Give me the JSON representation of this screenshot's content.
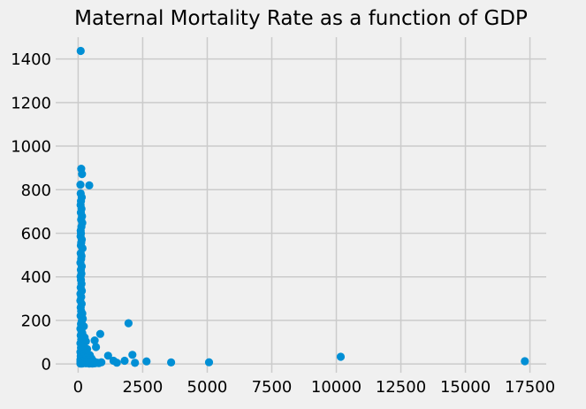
{
  "colors": {
    "figure_background": "#f0f0f0",
    "axes_background": "#f0f0f0",
    "grid": "#cbcbcb",
    "point": "#008fd5",
    "text": "#000000"
  },
  "chart_data": {
    "type": "scatter",
    "title": "Maternal Mortality Rate as a function of GDP",
    "xlabel": "",
    "ylabel": "",
    "x_ticks": [
      0,
      2500,
      5000,
      7500,
      10000,
      12500,
      15000,
      17500
    ],
    "y_ticks": [
      0,
      200,
      400,
      600,
      800,
      1000,
      1200,
      1400
    ],
    "xlim": [
      -870,
      18130
    ],
    "ylim": [
      -40,
      1500
    ],
    "grid": true,
    "legend": false,
    "points": [
      [
        100,
        1437
      ],
      [
        120,
        896
      ],
      [
        150,
        872
      ],
      [
        90,
        823
      ],
      [
        430,
        820
      ],
      [
        100,
        783
      ],
      [
        140,
        765
      ],
      [
        110,
        748
      ],
      [
        95,
        730
      ],
      [
        130,
        712
      ],
      [
        105,
        695
      ],
      [
        150,
        678
      ],
      [
        115,
        663
      ],
      [
        160,
        648
      ],
      [
        125,
        630
      ],
      [
        100,
        612
      ],
      [
        110,
        600
      ],
      [
        95,
        586
      ],
      [
        140,
        571
      ],
      [
        120,
        557
      ],
      [
        105,
        544
      ],
      [
        170,
        531
      ],
      [
        100,
        508
      ],
      [
        130,
        495
      ],
      [
        115,
        482
      ],
      [
        90,
        465
      ],
      [
        140,
        448
      ],
      [
        105,
        432
      ],
      [
        125,
        415
      ],
      [
        95,
        402
      ],
      [
        110,
        386
      ],
      [
        130,
        368
      ],
      [
        100,
        351
      ],
      [
        145,
        336
      ],
      [
        90,
        322
      ],
      [
        120,
        308
      ],
      [
        85,
        291
      ],
      [
        135,
        276
      ],
      [
        100,
        259
      ],
      [
        115,
        243
      ],
      [
        160,
        232
      ],
      [
        95,
        221
      ],
      [
        180,
        208
      ],
      [
        140,
        196
      ],
      [
        110,
        184
      ],
      [
        220,
        173
      ],
      [
        90,
        162
      ],
      [
        130,
        151
      ],
      [
        856,
        138
      ],
      [
        1950,
        187
      ],
      [
        160,
        142
      ],
      [
        100,
        131
      ],
      [
        250,
        122
      ],
      [
        120,
        112
      ],
      [
        300,
        104
      ],
      [
        90,
        95
      ],
      [
        200,
        88
      ],
      [
        140,
        82
      ],
      [
        640,
        108
      ],
      [
        690,
        78
      ],
      [
        110,
        74
      ],
      [
        350,
        68
      ],
      [
        170,
        61
      ],
      [
        90,
        55
      ],
      [
        260,
        49
      ],
      [
        130,
        44
      ],
      [
        450,
        41
      ],
      [
        100,
        36
      ],
      [
        200,
        33
      ],
      [
        310,
        30
      ],
      [
        150,
        27
      ],
      [
        520,
        25
      ],
      [
        120,
        22
      ],
      [
        90,
        20
      ],
      [
        230,
        18
      ],
      [
        400,
        16
      ],
      [
        180,
        15
      ],
      [
        110,
        14
      ],
      [
        600,
        13
      ],
      [
        140,
        12
      ],
      [
        330,
        11
      ],
      [
        95,
        10
      ],
      [
        90,
        9
      ],
      [
        250,
        8
      ],
      [
        170,
        7
      ],
      [
        500,
        7
      ],
      [
        120,
        6
      ],
      [
        380,
        5
      ],
      [
        700,
        5
      ],
      [
        210,
        4
      ],
      [
        100,
        3
      ],
      [
        300,
        3
      ],
      [
        150,
        2
      ],
      [
        90,
        2
      ],
      [
        550,
        2
      ],
      [
        430,
        2
      ],
      [
        650,
        3
      ],
      [
        800,
        4
      ],
      [
        750,
        6
      ],
      [
        900,
        8
      ],
      [
        1160,
        38
      ],
      [
        1370,
        15
      ],
      [
        1500,
        6
      ],
      [
        1800,
        15
      ],
      [
        2100,
        42
      ],
      [
        2200,
        5
      ],
      [
        2650,
        12
      ],
      [
        3600,
        7
      ],
      [
        5070,
        8
      ],
      [
        10170,
        33
      ],
      [
        17300,
        13
      ]
    ]
  }
}
